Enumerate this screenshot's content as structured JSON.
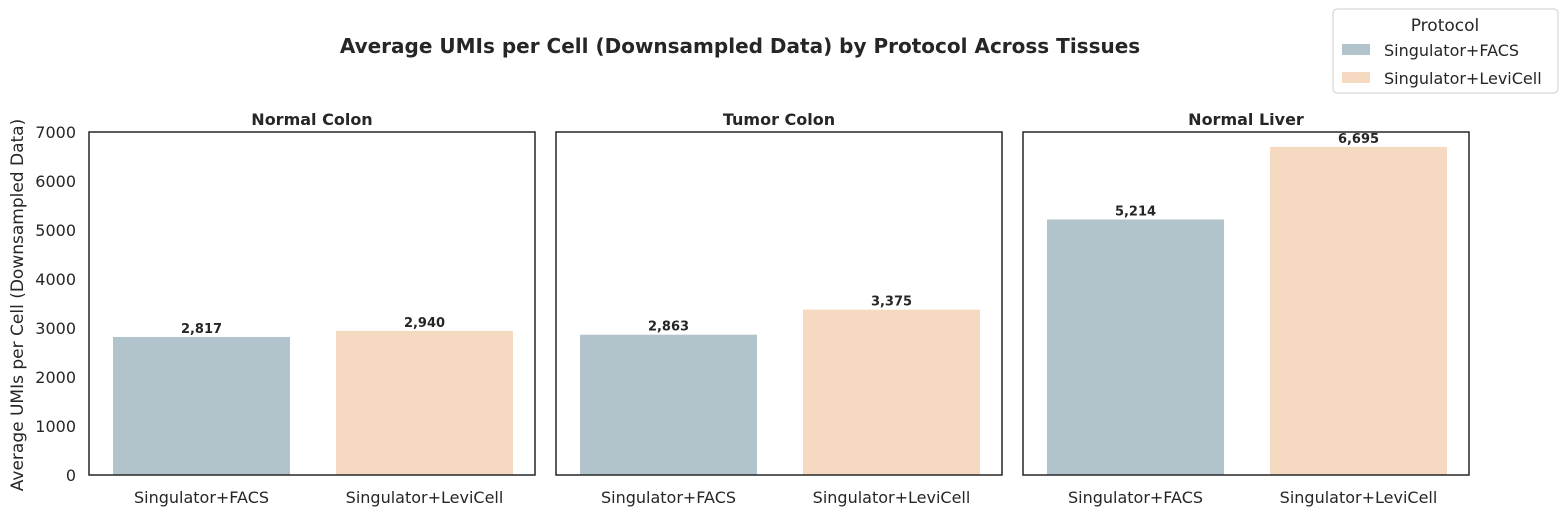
{
  "chart_data": {
    "type": "bar",
    "title": "Average UMIs per Cell (Downsampled Data) by Protocol Across Tissues",
    "ylabel": "Average UMIs per Cell (Downsampled Data)",
    "ylim": [
      0,
      7000
    ],
    "yticks": [
      0,
      1000,
      2000,
      3000,
      4000,
      5000,
      6000,
      7000
    ],
    "grid": false,
    "legend": {
      "title": "Protocol",
      "placement": "top-right",
      "entries": [
        "Singulator+FACS",
        "Singulator+LeviCell"
      ]
    },
    "colors": {
      "Singulator+FACS": "#b1c4cb",
      "Singulator+LeviCell": "#f5dac1"
    },
    "panels": [
      {
        "title": "Normal Colon",
        "categories": [
          "Singulator+FACS",
          "Singulator+LeviCell"
        ],
        "values": [
          2817,
          2940
        ],
        "labels": [
          "2,817",
          "2,940"
        ]
      },
      {
        "title": "Tumor Colon",
        "categories": [
          "Singulator+FACS",
          "Singulator+LeviCell"
        ],
        "values": [
          2863,
          3375
        ],
        "labels": [
          "2,863",
          "3,375"
        ]
      },
      {
        "title": "Normal Liver",
        "categories": [
          "Singulator+FACS",
          "Singulator+LeviCell"
        ],
        "values": [
          5214,
          6695
        ],
        "labels": [
          "5,214",
          "6,695"
        ]
      }
    ]
  }
}
